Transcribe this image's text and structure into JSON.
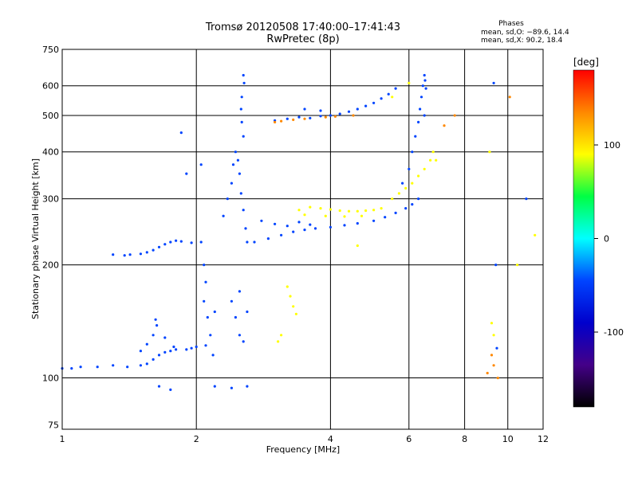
{
  "chart_data": {
    "type": "scatter",
    "title": "Tromsø 20120508 17:40:00–17:41:43",
    "subtitle": "RwPretec (8p)",
    "xlabel": "Frequency [MHz]",
    "ylabel": "Stationary phase Virtual Height [km]",
    "x_scale": "log",
    "y_scale": "log",
    "xlim": [
      1,
      12
    ],
    "ylim": [
      73,
      750
    ],
    "x_ticks": [
      1,
      2,
      4,
      6,
      8,
      10,
      12
    ],
    "y_ticks": [
      75,
      100,
      200,
      300,
      400,
      500,
      600,
      750
    ],
    "grid_x": [
      1,
      2,
      4,
      6,
      8,
      10,
      12
    ],
    "grid_y": [
      100,
      200,
      300,
      400,
      500,
      600,
      750
    ],
    "grid": true,
    "legend": {
      "heading": "Phases",
      "lines": [
        "mean, sd,O:  −89.6, 14.4",
        "mean, sd,X:  90.2, 18.4"
      ],
      "placement": "top-right"
    },
    "colorbar": {
      "label": "[deg]",
      "min": -180,
      "max": 180,
      "ticks": [
        100,
        0,
        -100
      ],
      "colors": [
        "#ff0000",
        "#ff8800",
        "#ffff00",
        "#00ff44",
        "#00ffff",
        "#0044ff",
        "#0000cc",
        "#440088",
        "#000000"
      ]
    },
    "series": [
      {
        "points": [
          [
            1.0,
            106
          ],
          [
            1.05,
            106
          ],
          [
            1.1,
            107
          ],
          [
            1.2,
            107
          ],
          [
            1.3,
            108
          ],
          [
            1.4,
            107
          ],
          [
            1.5,
            108
          ],
          [
            1.55,
            109
          ],
          [
            1.6,
            112
          ],
          [
            1.65,
            115
          ],
          [
            1.7,
            117
          ],
          [
            1.75,
            118
          ],
          [
            1.8,
            119
          ],
          [
            1.9,
            119
          ],
          [
            1.95,
            120
          ],
          [
            2.0,
            121
          ],
          [
            1.5,
            118
          ],
          [
            1.55,
            123
          ],
          [
            1.6,
            130
          ],
          [
            1.63,
            138
          ],
          [
            1.62,
            143
          ],
          [
            1.7,
            128
          ],
          [
            1.78,
            121
          ],
          [
            1.3,
            213
          ],
          [
            1.38,
            212
          ],
          [
            1.42,
            213
          ],
          [
            1.5,
            214
          ],
          [
            1.55,
            216
          ],
          [
            1.6,
            219
          ],
          [
            1.65,
            223
          ],
          [
            1.7,
            227
          ],
          [
            1.75,
            230
          ],
          [
            1.8,
            232
          ],
          [
            1.85,
            231
          ],
          [
            1.95,
            229
          ],
          [
            2.05,
            230
          ],
          [
            2.08,
            200
          ],
          [
            2.1,
            180
          ],
          [
            2.08,
            160
          ],
          [
            2.12,
            145
          ],
          [
            2.15,
            130
          ],
          [
            2.1,
            122
          ],
          [
            2.18,
            115
          ],
          [
            2.2,
            150
          ],
          [
            2.3,
            270
          ],
          [
            2.35,
            300
          ],
          [
            2.4,
            330
          ],
          [
            2.42,
            370
          ],
          [
            2.45,
            400
          ],
          [
            2.48,
            380
          ],
          [
            2.5,
            350
          ],
          [
            2.52,
            310
          ],
          [
            2.55,
            280
          ],
          [
            2.58,
            250
          ],
          [
            2.6,
            230
          ],
          [
            2.55,
            440
          ],
          [
            2.53,
            480
          ],
          [
            2.52,
            520
          ],
          [
            2.53,
            560
          ],
          [
            2.56,
            610
          ],
          [
            2.55,
            640
          ],
          [
            2.4,
            160
          ],
          [
            2.45,
            145
          ],
          [
            2.5,
            130
          ],
          [
            2.55,
            125
          ],
          [
            2.6,
            150
          ],
          [
            2.5,
            170
          ],
          [
            2.7,
            230
          ],
          [
            2.9,
            235
          ],
          [
            3.1,
            240
          ],
          [
            3.3,
            245
          ],
          [
            3.5,
            248
          ],
          [
            3.7,
            250
          ],
          [
            4.0,
            252
          ],
          [
            4.3,
            255
          ],
          [
            4.6,
            258
          ],
          [
            5.0,
            262
          ],
          [
            5.3,
            268
          ],
          [
            5.6,
            275
          ],
          [
            5.9,
            283
          ],
          [
            6.1,
            290
          ],
          [
            6.3,
            300
          ],
          [
            2.8,
            262
          ],
          [
            3.0,
            257
          ],
          [
            3.2,
            254
          ],
          [
            3.4,
            260
          ],
          [
            3.6,
            256
          ],
          [
            3.0,
            485
          ],
          [
            3.2,
            490
          ],
          [
            3.4,
            495
          ],
          [
            3.6,
            492
          ],
          [
            3.8,
            498
          ],
          [
            4.0,
            500
          ],
          [
            4.2,
            505
          ],
          [
            4.4,
            512
          ],
          [
            4.6,
            520
          ],
          [
            4.8,
            530
          ],
          [
            5.0,
            540
          ],
          [
            5.2,
            555
          ],
          [
            5.4,
            570
          ],
          [
            5.6,
            590
          ],
          [
            3.5,
            520
          ],
          [
            3.8,
            515
          ],
          [
            5.8,
            330
          ],
          [
            6.0,
            360
          ],
          [
            6.1,
            400
          ],
          [
            6.2,
            440
          ],
          [
            6.3,
            480
          ],
          [
            6.35,
            520
          ],
          [
            6.4,
            560
          ],
          [
            6.45,
            600
          ],
          [
            6.5,
            640
          ],
          [
            6.52,
            620
          ],
          [
            6.55,
            590
          ],
          [
            6.5,
            500
          ],
          [
            1.65,
            95
          ],
          [
            1.75,
            93
          ],
          [
            2.2,
            95
          ],
          [
            2.4,
            94
          ],
          [
            2.6,
            95
          ],
          [
            1.9,
            350
          ],
          [
            1.85,
            450
          ],
          [
            2.05,
            370
          ],
          [
            9.3,
            610
          ],
          [
            9.4,
            200
          ],
          [
            9.45,
            120
          ],
          [
            11.0,
            300
          ]
        ]
      },
      {
        "points": [
          [
            3.4,
            280
          ],
          [
            3.6,
            285
          ],
          [
            3.8,
            283
          ],
          [
            4.0,
            281
          ],
          [
            4.2,
            279
          ],
          [
            4.4,
            278
          ],
          [
            4.6,
            278
          ],
          [
            4.8,
            279
          ],
          [
            5.0,
            280
          ],
          [
            5.2,
            283
          ],
          [
            3.5,
            272
          ],
          [
            3.9,
            270
          ],
          [
            4.3,
            269
          ],
          [
            4.7,
            270
          ],
          [
            5.5,
            300
          ],
          [
            5.7,
            310
          ],
          [
            5.9,
            320
          ],
          [
            6.1,
            330
          ],
          [
            6.3,
            345
          ],
          [
            6.5,
            360
          ],
          [
            6.7,
            380
          ],
          [
            6.8,
            400
          ],
          [
            6.9,
            380
          ],
          [
            3.2,
            175
          ],
          [
            3.25,
            165
          ],
          [
            3.3,
            155
          ],
          [
            3.35,
            148
          ],
          [
            3.1,
            130
          ],
          [
            3.05,
            125
          ],
          [
            4.6,
            225
          ],
          [
            5.5,
            560
          ],
          [
            6.0,
            610
          ],
          [
            9.2,
            140
          ],
          [
            9.3,
            130
          ],
          [
            9.1,
            400
          ],
          [
            10.5,
            200
          ],
          [
            11.5,
            240
          ]
        ]
      },
      {
        "points": [
          [
            3.0,
            480
          ],
          [
            3.1,
            483
          ],
          [
            3.3,
            487
          ],
          [
            3.5,
            490
          ],
          [
            3.9,
            495
          ],
          [
            4.1,
            497
          ],
          [
            4.5,
            500
          ],
          [
            9.0,
            103
          ],
          [
            9.2,
            115
          ],
          [
            9.3,
            108
          ],
          [
            9.5,
            100
          ],
          [
            10.1,
            560
          ],
          [
            7.2,
            470
          ],
          [
            7.6,
            500
          ]
        ]
      }
    ]
  }
}
